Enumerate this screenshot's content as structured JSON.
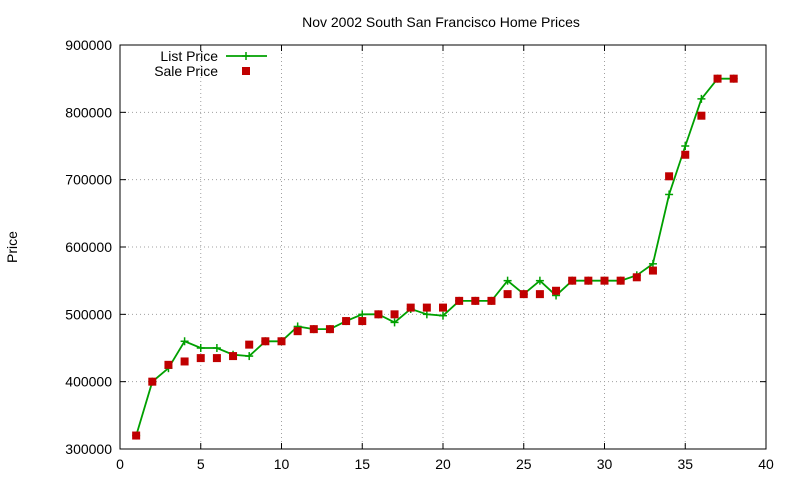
{
  "chart_data": {
    "type": "line",
    "title": "Nov 2002 South San Francisco Home Prices",
    "xlabel": "",
    "ylabel": "Price",
    "xlim": [
      0,
      40
    ],
    "ylim": [
      300000,
      900000
    ],
    "x_ticks": [
      "0",
      "5",
      "10",
      "15",
      "20",
      "25",
      "30",
      "35",
      "40"
    ],
    "y_ticks": [
      "300000",
      "400000",
      "500000",
      "600000",
      "700000",
      "800000",
      "900000"
    ],
    "grid": true,
    "legend_position": "top-left",
    "series": [
      {
        "name": "List Price",
        "style": "line-plus",
        "color": "#00a000",
        "x": [
          1,
          2,
          3,
          4,
          5,
          6,
          7,
          8,
          9,
          10,
          11,
          12,
          13,
          14,
          15,
          16,
          17,
          18,
          19,
          20,
          21,
          22,
          23,
          24,
          25,
          26,
          27,
          28,
          29,
          30,
          31,
          32,
          33,
          34,
          35,
          36,
          37,
          38
        ],
        "values": [
          320000,
          400000,
          420000,
          460000,
          450000,
          450000,
          440000,
          438000,
          460000,
          460000,
          482000,
          478000,
          478000,
          490000,
          500000,
          500000,
          488000,
          508000,
          500000,
          498000,
          520000,
          520000,
          520000,
          550000,
          530000,
          550000,
          528000,
          550000,
          550000,
          550000,
          550000,
          558000,
          575000,
          678000,
          750000,
          820000,
          850000,
          850000
        ]
      },
      {
        "name": "Sale Price",
        "style": "square-points",
        "color": "#c00000",
        "x": [
          1,
          2,
          3,
          4,
          5,
          6,
          7,
          8,
          9,
          10,
          11,
          12,
          13,
          14,
          15,
          16,
          17,
          18,
          19,
          20,
          21,
          22,
          23,
          24,
          25,
          26,
          27,
          28,
          29,
          30,
          31,
          32,
          33,
          34,
          35,
          36,
          37,
          38
        ],
        "values": [
          320000,
          400000,
          425000,
          430000,
          435000,
          435000,
          438000,
          455000,
          460000,
          460000,
          475000,
          478000,
          478000,
          490000,
          490000,
          500000,
          500000,
          510000,
          510000,
          510000,
          520000,
          520000,
          520000,
          530000,
          530000,
          530000,
          535000,
          550000,
          550000,
          550000,
          550000,
          555000,
          565000,
          705000,
          737000,
          795000,
          850000,
          850000
        ]
      }
    ]
  }
}
